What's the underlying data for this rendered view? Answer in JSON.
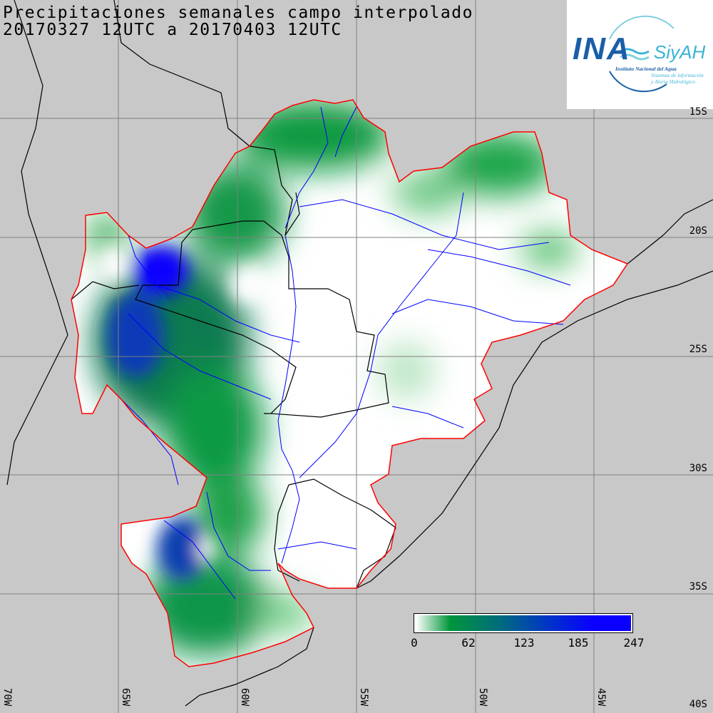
{
  "title": {
    "line1": "Precipitaciones semanales campo interpolado",
    "line2": "20170327 12UTC a 20170403 12UTC"
  },
  "logo": {
    "main": "INA",
    "brand": "SiyAH",
    "institute": "Instituto Nacional del Agua",
    "subtitle_1": "Sistemas de información",
    "subtitle_2": "y Alerta Hidrológico"
  },
  "latitude_labels": [
    "15S",
    "20S",
    "25S",
    "30S",
    "35S",
    "40S"
  ],
  "longitude_labels": [
    "70W",
    "65W",
    "60W",
    "55W",
    "50W",
    "45W"
  ],
  "colorbar": {
    "ticks": [
      "0",
      "62",
      "123",
      "185",
      "247"
    ],
    "colors": [
      "#ffffff",
      "#00963a",
      "#006a80",
      "#0033c8",
      "#0a00ff"
    ]
  },
  "colors": {
    "background": "#c8c8c8",
    "basin_outline": "#ff0000",
    "rivers": "#0000ff",
    "borders": "#000000",
    "grid": "#808080"
  }
}
